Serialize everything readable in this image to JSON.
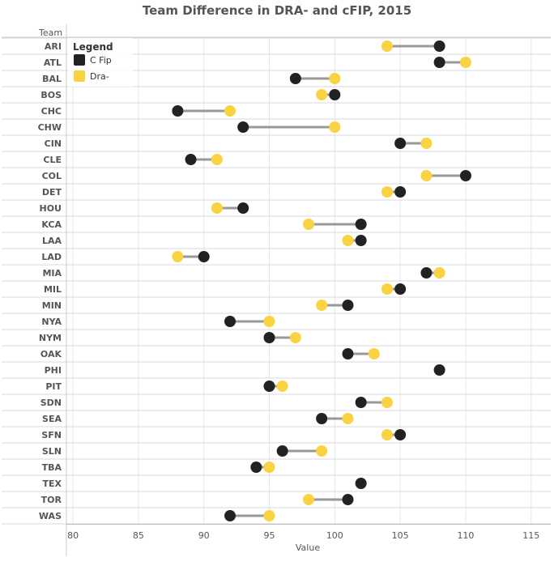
{
  "chart_data": {
    "type": "dumbbell",
    "title": "Team Difference in DRA- and cFIP, 2015",
    "row_header": "Team",
    "xlabel": "Value",
    "xlim": [
      79.5,
      116.5
    ],
    "xticks": [
      80,
      85,
      90,
      95,
      100,
      105,
      110,
      115
    ],
    "grid": true,
    "legend": {
      "title": "Legend",
      "placement": "top-left",
      "items": [
        {
          "label": "C Fip",
          "color": "#222222"
        },
        {
          "label": "Dra-",
          "color": "#f9d342"
        }
      ]
    },
    "connector_color": "#999999",
    "series": [
      {
        "name": "C Fip",
        "color": "#222222"
      },
      {
        "name": "Dra-",
        "color": "#f9d342"
      }
    ],
    "categories": [
      "ARI",
      "ATL",
      "BAL",
      "BOS",
      "CHC",
      "CHW",
      "CIN",
      "CLE",
      "COL",
      "DET",
      "HOU",
      "KCA",
      "LAA",
      "LAD",
      "MIA",
      "MIL",
      "MIN",
      "NYA",
      "NYM",
      "OAK",
      "PHI",
      "PIT",
      "SDN",
      "SEA",
      "SFN",
      "SLN",
      "TBA",
      "TEX",
      "TOR",
      "WAS"
    ],
    "rows": [
      {
        "team": "ARI",
        "cfip": 108,
        "dra": 104
      },
      {
        "team": "ATL",
        "cfip": 108,
        "dra": 110
      },
      {
        "team": "BAL",
        "cfip": 97,
        "dra": 100
      },
      {
        "team": "BOS",
        "cfip": 100,
        "dra": 99
      },
      {
        "team": "CHC",
        "cfip": 88,
        "dra": 92
      },
      {
        "team": "CHW",
        "cfip": 93,
        "dra": 100
      },
      {
        "team": "CIN",
        "cfip": 105,
        "dra": 107
      },
      {
        "team": "CLE",
        "cfip": 89,
        "dra": 91
      },
      {
        "team": "COL",
        "cfip": 110,
        "dra": 107
      },
      {
        "team": "DET",
        "cfip": 105,
        "dra": 104
      },
      {
        "team": "HOU",
        "cfip": 93,
        "dra": 91
      },
      {
        "team": "KCA",
        "cfip": 102,
        "dra": 98
      },
      {
        "team": "LAA",
        "cfip": 102,
        "dra": 101
      },
      {
        "team": "LAD",
        "cfip": 90,
        "dra": 88
      },
      {
        "team": "MIA",
        "cfip": 107,
        "dra": 108
      },
      {
        "team": "MIL",
        "cfip": 105,
        "dra": 104
      },
      {
        "team": "MIN",
        "cfip": 101,
        "dra": 99
      },
      {
        "team": "NYA",
        "cfip": 92,
        "dra": 95
      },
      {
        "team": "NYM",
        "cfip": 95,
        "dra": 97
      },
      {
        "team": "OAK",
        "cfip": 101,
        "dra": 103
      },
      {
        "team": "PHI",
        "cfip": 108,
        "dra": 108
      },
      {
        "team": "PIT",
        "cfip": 95,
        "dra": 96
      },
      {
        "team": "SDN",
        "cfip": 102,
        "dra": 104
      },
      {
        "team": "SEA",
        "cfip": 99,
        "dra": 101
      },
      {
        "team": "SFN",
        "cfip": 105,
        "dra": 104
      },
      {
        "team": "SLN",
        "cfip": 96,
        "dra": 99
      },
      {
        "team": "TBA",
        "cfip": 94,
        "dra": 95
      },
      {
        "team": "TEX",
        "cfip": 102,
        "dra": 102
      },
      {
        "team": "TOR",
        "cfip": 101,
        "dra": 98
      },
      {
        "team": "WAS",
        "cfip": 92,
        "dra": 95
      }
    ]
  }
}
